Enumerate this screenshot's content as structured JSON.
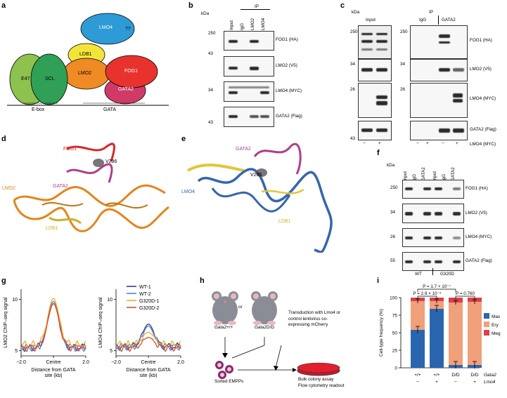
{
  "panels": {
    "a": "a",
    "b": "b",
    "c": "c",
    "d": "d",
    "e": "e",
    "f": "f",
    "g": "g",
    "h": "h",
    "i": "i"
  },
  "a": {
    "lmo4": "LMO4",
    "q": "??",
    "ldb1": "LDB1",
    "lmo2": "LMO2",
    "fog1": "FOG1",
    "gata2": "GATA2",
    "e47": "E47",
    "scl": "SCL",
    "ebox": "E-box",
    "gata": "GATA"
  },
  "b": {
    "kda": "kDa",
    "ip": "IP",
    "lanes": [
      "Input",
      "IgG",
      "LMO2",
      "LMO4"
    ],
    "markers": [
      "250",
      "43",
      "34",
      "43"
    ],
    "rows": [
      "FOG1 (HA)",
      "LMO2 (V5)",
      "LMO4 (MYC)",
      "GATA2 (Flag)"
    ]
  },
  "c": {
    "kda": "kDa",
    "input": "Input",
    "ip": "IP",
    "igg": "IgG",
    "gata2": "GATA2",
    "markers": [
      "250",
      "34",
      "26",
      "43"
    ],
    "rows": [
      "FOG1 (HA)",
      "LMO2 (V5)",
      "LMO4 (MYC)",
      "GATA2 (Flag)"
    ],
    "signs": [
      "−",
      "+",
      "−",
      "+",
      "−",
      "+"
    ],
    "lmo4myc": "LMO4 (MYC)"
  },
  "d": {
    "fog1": "FOG1",
    "v296": "V296",
    "gata2": "GATA2",
    "lmo2": "LMO2",
    "ldb1": "LDB1"
  },
  "e": {
    "gata2": "GATA2",
    "v296": "V296",
    "lmo4": "LMO4",
    "ldb1": "LDB1"
  },
  "f": {
    "kda": "kDa",
    "lanes": [
      "Input",
      "IgG",
      "GATA2",
      "Input",
      "IgG",
      "GATA2"
    ],
    "markers": [
      "250",
      "34",
      "26",
      "55"
    ],
    "rows": [
      "FOG1 (HA)",
      "LMO2 (V5)",
      "LMO4 (MYC)",
      "GATA2 (Flag)"
    ],
    "wt": "WT",
    "g320d": "G320D"
  },
  "g": {
    "ylabel1": "LMO2 ChIP–seq signal",
    "ylabel2": "LMO4 ChIP–seq signal",
    "xlabel": "Distance from GATA site (kb)",
    "xticks": [
      "−2.0",
      "Centre",
      "2.0"
    ],
    "legend": [
      "WT-1",
      "WT-2",
      "G320D-1",
      "G320D-2"
    ]
  },
  "h": {
    "wt": "Gata2+/+",
    "or": "or",
    "dd": "Gata2D/D",
    "trans": "Transduction with Lmo4 or control lentivirus co-expressing mCherry",
    "sorted": "Sorted EMPPs",
    "bulk": "Bulk colony assay",
    "flow": "Flow cytometry readout"
  },
  "i": {
    "ylabel": "Cell-type frequency (%)",
    "p1": "P = 1.7 × 10⁻⁷",
    "p2": "P = 2.9 × 10⁻⁵",
    "p3": "P = 0.760",
    "legend": [
      "Mas",
      "Ery",
      "Meg"
    ],
    "xlabels": [
      [
        "+/+",
        "−"
      ],
      [
        "+/+",
        "+"
      ],
      [
        "D/D",
        "−"
      ],
      [
        "D/D",
        "+"
      ]
    ],
    "rowlabels": [
      "Gata2",
      "Lmo4"
    ]
  },
  "chart_data": [
    {
      "type": "line",
      "panel": "g-left",
      "ylabel": "LMO2 ChIP–seq signal",
      "xlabel": "Distance from GATA site (kb)",
      "ylim": [
        4.5,
        11
      ],
      "yticks": [
        5,
        10
      ],
      "series": [
        {
          "name": "WT-1",
          "color": "#2b3f8f"
        },
        {
          "name": "WT-2",
          "color": "#5a82d0"
        },
        {
          "name": "G320D-1",
          "color": "#f0b020"
        },
        {
          "name": "G320D-2",
          "color": "#e04a2a"
        }
      ],
      "peak": [
        9.6,
        9.8,
        10.1,
        9.6
      ],
      "base": [
        5.3,
        5.3,
        5.6,
        5.3
      ]
    },
    {
      "type": "line",
      "panel": "g-right",
      "ylabel": "LMO4 ChIP–seq signal",
      "xlabel": "Distance from GATA site (kb)",
      "ylim": [
        4.5,
        11
      ],
      "yticks": [
        5,
        10
      ],
      "series": [
        {
          "name": "WT-1",
          "color": "#2b3f8f"
        },
        {
          "name": "WT-2",
          "color": "#5a82d0"
        },
        {
          "name": "G320D-1",
          "color": "#f0b020"
        },
        {
          "name": "G320D-2",
          "color": "#e04a2a"
        }
      ],
      "peak": [
        7.6,
        7.4,
        6.8,
        6.3
      ],
      "base": [
        5.4,
        5.4,
        5.6,
        5.3
      ]
    },
    {
      "type": "bar",
      "panel": "i",
      "stacked": true,
      "ylabel": "Cell-type frequency (%)",
      "ylim": [
        0,
        100
      ],
      "yticks": [
        0,
        25,
        50,
        75,
        100
      ],
      "categories": [
        "+/+ −",
        "+/+ +",
        "D/D −",
        "D/D +"
      ],
      "series": [
        {
          "name": "Mas",
          "color": "#2a66b0",
          "values": [
            54,
            84,
            4,
            4
          ]
        },
        {
          "name": "Ery",
          "color": "#f0a07a",
          "values": [
            41,
            11,
            89,
            90
          ]
        },
        {
          "name": "Meg",
          "color": "#d9404a",
          "values": [
            5,
            5,
            7,
            6
          ]
        }
      ]
    }
  ]
}
